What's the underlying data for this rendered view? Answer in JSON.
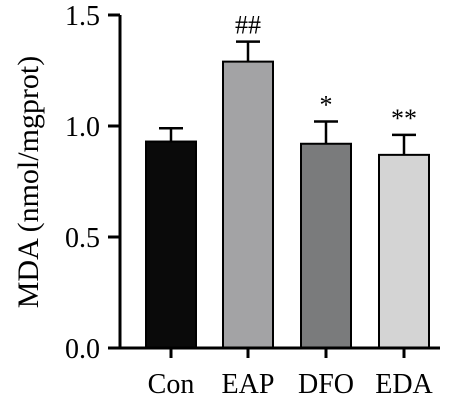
{
  "chart_data": {
    "type": "bar",
    "categories": [
      "Con",
      "EAP",
      "DFO",
      "EDA"
    ],
    "values": [
      0.93,
      1.29,
      0.92,
      0.87
    ],
    "errors": [
      0.06,
      0.09,
      0.1,
      0.09
    ],
    "annotations": [
      "",
      "##",
      "*",
      "**"
    ],
    "colors": [
      "#0a0a0a",
      "#a3a3a5",
      "#7a7b7c",
      "#d4d4d4"
    ],
    "xlabel": "",
    "ylabel": "MDA (nmol/mgprot)",
    "ylim": [
      0,
      1.5
    ],
    "yticks": [
      0.0,
      0.5,
      1.0,
      1.5
    ],
    "ytick_labels": [
      "0.0",
      "0.5",
      "1.0",
      "1.5"
    ],
    "grid": false,
    "legend": "none"
  }
}
